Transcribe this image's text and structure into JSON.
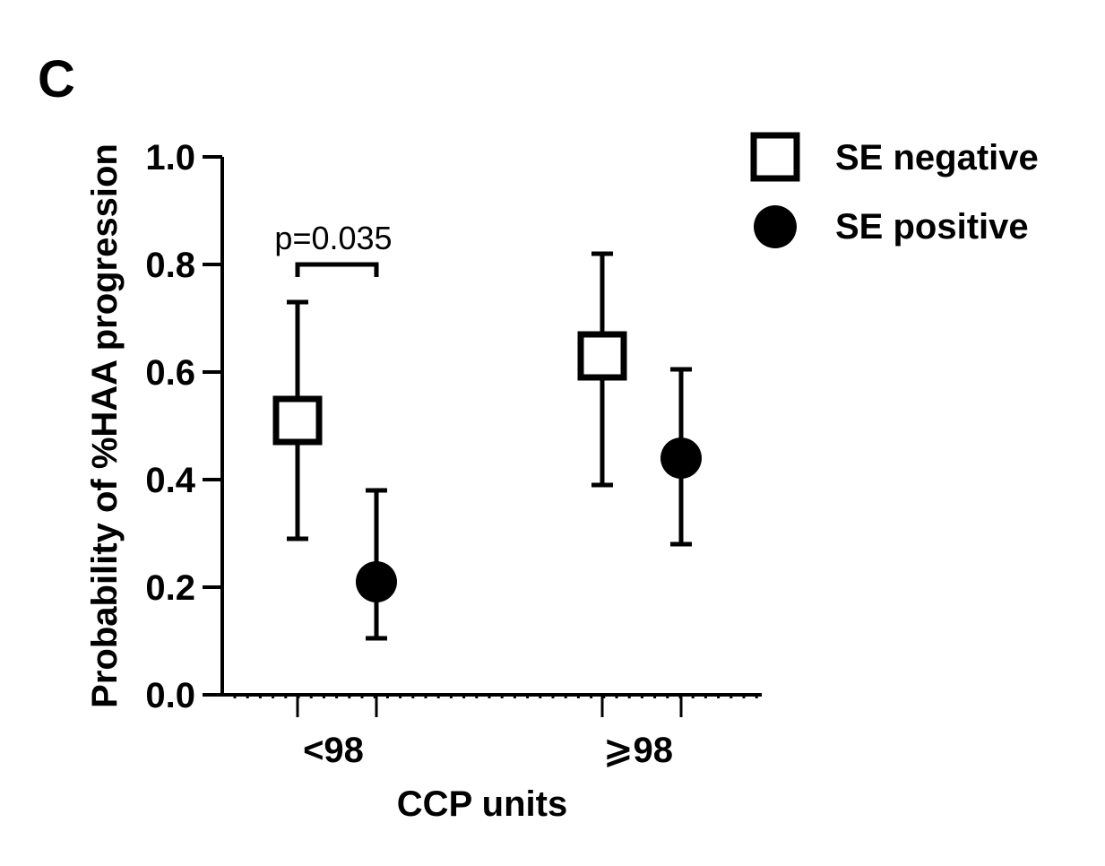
{
  "panel_label": "C",
  "chart_data": {
    "type": "scatter",
    "subtype": "point-with-error-bars",
    "title": "",
    "xlabel": "CCP units",
    "ylabel": "Probability of %HAA progression",
    "categories": [
      "<98",
      "⩾98"
    ],
    "ylim": [
      0,
      1.0
    ],
    "yticks": [
      0.0,
      0.2,
      0.4,
      0.6,
      0.8,
      1.0
    ],
    "ytick_labels": [
      "0.0",
      "0.2",
      "0.4",
      "0.6",
      "0.8",
      "1.0"
    ],
    "legend_position": "top-right",
    "series": [
      {
        "name": "SE negative",
        "marker": "open-square",
        "values": [
          0.51,
          0.63
        ],
        "lower": [
          0.29,
          0.39
        ],
        "upper": [
          0.73,
          0.82
        ]
      },
      {
        "name": "SE positive",
        "marker": "filled-circle",
        "values": [
          0.21,
          0.44
        ],
        "lower": [
          0.105,
          0.28
        ],
        "upper": [
          0.38,
          0.605
        ]
      }
    ],
    "annotations": [
      {
        "text": "p=0.035",
        "category": "<98",
        "y": 0.8
      }
    ]
  }
}
